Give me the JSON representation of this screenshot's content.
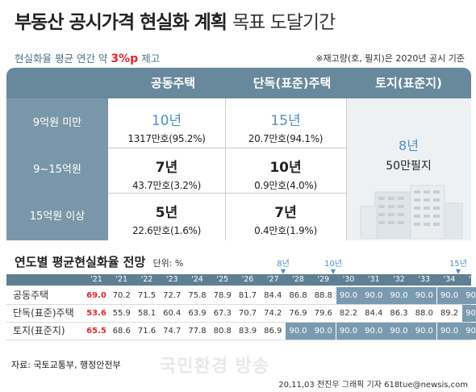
{
  "title": {
    "bold": "부동산 공시가격 현실화 계획",
    "light": "목표 도달기간"
  },
  "subtitle": {
    "prefix": "현실화율 평균 연간 약",
    "highlight": "3%p",
    "suffix": "제고"
  },
  "note": "※재고량(호, 필지)은 2020년 공시 기준",
  "table1": {
    "headers": {
      "apartment": "공동주택",
      "house": "단독(표준)주택",
      "land": "토지(표준지)"
    },
    "rows": [
      {
        "label": "9억원 미만",
        "apt_years": "10년",
        "apt_count": "1317만호(95.2%)",
        "house_years": "15년",
        "house_count": "20.7만호(94.1%)"
      },
      {
        "label": "9~15억원",
        "apt_years": "7년",
        "apt_count": "43.7만호(3.2%)",
        "house_years": "10년",
        "house_count": "0.9만호(4.0%)"
      },
      {
        "label": "15억원 이상",
        "apt_years": "5년",
        "apt_count": "22.6만호(1.6%)",
        "house_years": "7년",
        "house_count": "0.4만호(1.9%)"
      }
    ],
    "land": {
      "years": "8년",
      "count": "50만필지"
    }
  },
  "table2": {
    "title": "연도별 평균현실화율 전망",
    "unit": "단위: %",
    "markers": [
      "8년",
      "10년",
      "15년"
    ],
    "years": [
      "'21",
      "'21",
      "'22",
      "'23",
      "'24",
      "'25",
      "'26",
      "'27",
      "'28",
      "'29",
      "'30",
      "'31",
      "'32",
      "'33",
      "'34",
      "'35"
    ],
    "rows": [
      {
        "label": "공동주택",
        "values": [
          "69.0",
          "70.2",
          "71.5",
          "72.7",
          "75.8",
          "78.9",
          "81.7",
          "84.4",
          "86.8",
          "88.8",
          "90.0",
          "90.0",
          "90.0",
          "90.0",
          "90.0",
          "90.0"
        ]
      },
      {
        "label": "단독(표준)주택",
        "values": [
          "53.6",
          "55.9",
          "58.1",
          "60.4",
          "63.9",
          "67.3",
          "70.7",
          "74.2",
          "76.9",
          "79.6",
          "82.2",
          "84.4",
          "86.3",
          "88.0",
          "89.2",
          "90.0"
        ]
      },
      {
        "label": "토지(표준지)",
        "values": [
          "65.5",
          "68.6",
          "71.6",
          "74.7",
          "77.8",
          "80.8",
          "83.9",
          "86.9",
          "90.0",
          "90.0",
          "90.0",
          "90.0",
          "90.0",
          "90.0",
          "90.0",
          "90.0"
        ]
      }
    ]
  },
  "source": "자료: 국토교통부, 행정안전부",
  "watermark": "국민환경 방송",
  "byline": "20,11,03 전진우 그래픽 기자 618tue@newsis,com"
}
